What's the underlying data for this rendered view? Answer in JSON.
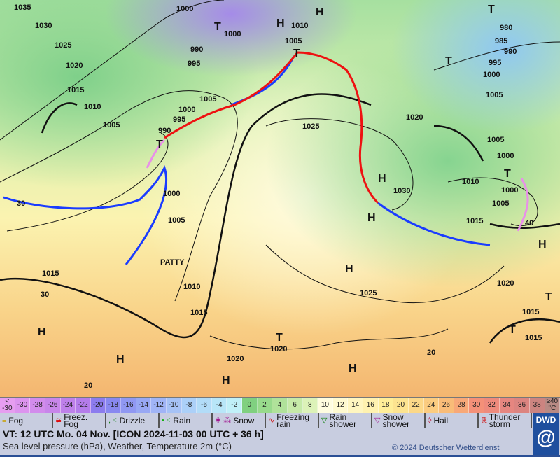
{
  "map": {
    "storm_label": "PATTY",
    "pressure_labels": [
      "1035",
      "1030",
      "1025",
      "1020",
      "1015",
      "1010",
      "1005",
      "1000",
      "1000",
      "990",
      "995",
      "1010",
      "1005",
      "1005",
      "1000",
      "995",
      "990",
      "1025",
      "1020",
      "1030",
      "1000",
      "1005",
      "1010",
      "1015",
      "1015",
      "1025",
      "1020",
      "1020",
      "1020",
      "1015",
      "1015",
      "980",
      "985",
      "990",
      "995",
      "1000",
      "1005",
      "1005",
      "1000",
      "1010",
      "1000",
      "1005",
      "1015"
    ],
    "temperature_labels": [
      "30",
      "20",
      "20",
      "30",
      "40"
    ],
    "high_labels": [
      "H",
      "H",
      "H",
      "H",
      "H",
      "H",
      "H",
      "H",
      "H",
      "H"
    ],
    "low_labels": [
      "T",
      "T",
      "T",
      "T",
      "T",
      "T",
      "T",
      "T",
      "T"
    ],
    "colors": {
      "cold_front": "#1a3cff",
      "warm_front": "#ee1111",
      "occlusion": "#e890e8",
      "isobar": "#111111"
    }
  },
  "temperature_scale": {
    "unit": "°C",
    "cells": [
      {
        "label": "< -30",
        "color": "#e69ef0"
      },
      {
        "label": "-30",
        "color": "#dc94ee"
      },
      {
        "label": "-28",
        "color": "#d28cec"
      },
      {
        "label": "-26",
        "color": "#c886ea"
      },
      {
        "label": "-24",
        "color": "#be80ea"
      },
      {
        "label": "-22",
        "color": "#b47cea"
      },
      {
        "label": "-20",
        "color": "#8c7cee"
      },
      {
        "label": "-18",
        "color": "#8888f0"
      },
      {
        "label": "-16",
        "color": "#9098f2"
      },
      {
        "label": "-14",
        "color": "#98a8f4"
      },
      {
        "label": "-12",
        "color": "#a0b4f6"
      },
      {
        "label": "-10",
        "color": "#a6c2f6"
      },
      {
        "label": "-8",
        "color": "#acd0f8"
      },
      {
        "label": "-6",
        "color": "#b2dcf8"
      },
      {
        "label": "-4",
        "color": "#b8e6f8"
      },
      {
        "label": "-2",
        "color": "#c0f0f8"
      },
      {
        "label": "0",
        "color": "#80d080"
      },
      {
        "label": "2",
        "color": "#98da8c"
      },
      {
        "label": "4",
        "color": "#b0e29a"
      },
      {
        "label": "6",
        "color": "#c6eaa8"
      },
      {
        "label": "8",
        "color": "#dcf2b8"
      },
      {
        "label": "10",
        "color": "#fffde0"
      },
      {
        "label": "12",
        "color": "#fffad0"
      },
      {
        "label": "14",
        "color": "#fff6c0"
      },
      {
        "label": "16",
        "color": "#fff2b0"
      },
      {
        "label": "18",
        "color": "#ffee98"
      },
      {
        "label": "20",
        "color": "#fde490"
      },
      {
        "label": "22",
        "color": "#fcd888"
      },
      {
        "label": "24",
        "color": "#fbcc80"
      },
      {
        "label": "26",
        "color": "#f9bc78"
      },
      {
        "label": "28",
        "color": "#f8a878"
      },
      {
        "label": "30",
        "color": "#f49078"
      },
      {
        "label": "32",
        "color": "#ee8a7c"
      },
      {
        "label": "34",
        "color": "#e68680"
      },
      {
        "label": "36",
        "color": "#dc8480"
      },
      {
        "label": "38",
        "color": "#cc8480"
      },
      {
        "label": "≥40 °C",
        "color": "#b88a84"
      }
    ]
  },
  "legend": [
    {
      "icon": "fog-icon",
      "glyph": "≡",
      "color": "#c8a000",
      "label": "Fog"
    },
    {
      "icon": "freezing-fog-icon",
      "glyph": "≆",
      "color": "#e00000",
      "label": "Freez. Fog"
    },
    {
      "icon": "drizzle-icon",
      "glyph": ", ⁖",
      "color": "#108010",
      "label": "Drizzle"
    },
    {
      "icon": "rain-icon",
      "glyph": "• ⁖",
      "color": "#10b010",
      "label": "Rain"
    },
    {
      "icon": "snow-icon",
      "glyph": "✱ ⁂",
      "color": "#a01890",
      "label": "Snow"
    },
    {
      "icon": "freezing-rain-icon",
      "glyph": "∿",
      "color": "#d01010",
      "label": "Freezing rain"
    },
    {
      "icon": "rain-shower-icon",
      "glyph": "▽",
      "color": "#108010",
      "label": "Rain shower"
    },
    {
      "icon": "snow-shower-icon",
      "glyph": "▽",
      "color": "#a01890",
      "label": "Snow shower"
    },
    {
      "icon": "hail-icon",
      "glyph": "◊",
      "color": "#c01030",
      "label": "Hail"
    },
    {
      "icon": "thunderstorm-icon",
      "glyph": "ℝ",
      "color": "#d01010",
      "label": "Thunder storm"
    }
  ],
  "footer": {
    "valid_time": "VT: 12 UTC Mo.  04 Nov. [ICON 2024-11-03  00 UTC + 36 h]",
    "subtitle": "Sea level pressure (hPa), Weather, Temperature 2m (°C)",
    "copyright": "© 2024 Deutscher Wetterdienst",
    "logo_text": "DWD"
  }
}
